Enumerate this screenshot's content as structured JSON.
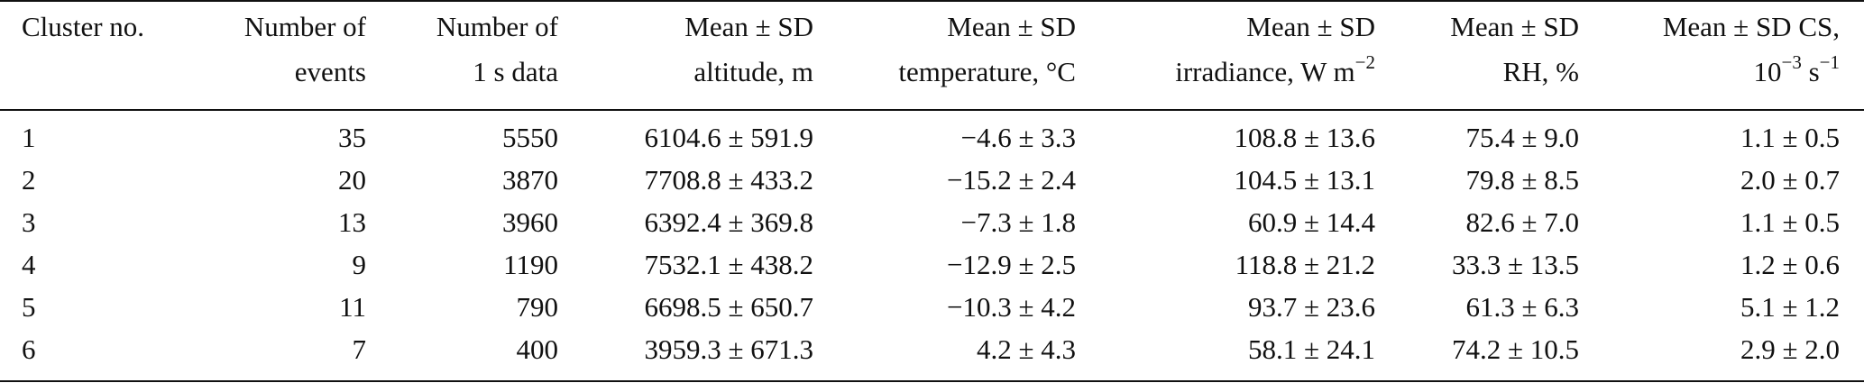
{
  "table": {
    "headers": [
      {
        "line1": "Cluster no.",
        "line2": ""
      },
      {
        "line1": "Number of",
        "line2": "events"
      },
      {
        "line1": "Number of",
        "line2": "1 s data"
      },
      {
        "line1": "Mean ± SD",
        "line2": "altitude, m"
      },
      {
        "line1": "Mean ± SD",
        "line2": "temperature, °C"
      },
      {
        "line1": "Mean ± SD",
        "line2": "irradiance, W m",
        "line2_sup": "−2"
      },
      {
        "line1": "Mean ± SD",
        "line2": "RH, %"
      },
      {
        "line1": "Mean ± SD CS,",
        "line2": "10",
        "line2_sup": "−3",
        "line2_tail": " s",
        "line2_tail_sup": "−1"
      }
    ],
    "rows": [
      [
        "1",
        "35",
        "5550",
        "6104.6 ± 591.9",
        "−4.6 ± 3.3",
        "108.8 ± 13.6",
        "75.4 ± 9.0",
        "1.1 ± 0.5"
      ],
      [
        "2",
        "20",
        "3870",
        "7708.8 ± 433.2",
        "−15.2 ± 2.4",
        "104.5 ± 13.1",
        "79.8 ± 8.5",
        "2.0 ± 0.7"
      ],
      [
        "3",
        "13",
        "3960",
        "6392.4 ± 369.8",
        "−7.3 ± 1.8",
        "60.9 ± 14.4",
        "82.6 ± 7.0",
        "1.1 ± 0.5"
      ],
      [
        "4",
        "9",
        "1190",
        "7532.1 ± 438.2",
        "−12.9 ± 2.5",
        "118.8 ± 21.2",
        "33.3 ± 13.5",
        "1.2 ± 0.6"
      ],
      [
        "5",
        "11",
        "790",
        "6698.5 ± 650.7",
        "−10.3 ± 4.2",
        "93.7 ± 23.6",
        "61.3 ± 6.3",
        "5.1 ± 1.2"
      ],
      [
        "6",
        "7",
        "400",
        "3959.3 ± 671.3",
        "4.2 ± 4.3",
        "58.1 ± 24.1",
        "74.2 ± 10.5",
        "2.9 ± 2.0"
      ]
    ]
  }
}
